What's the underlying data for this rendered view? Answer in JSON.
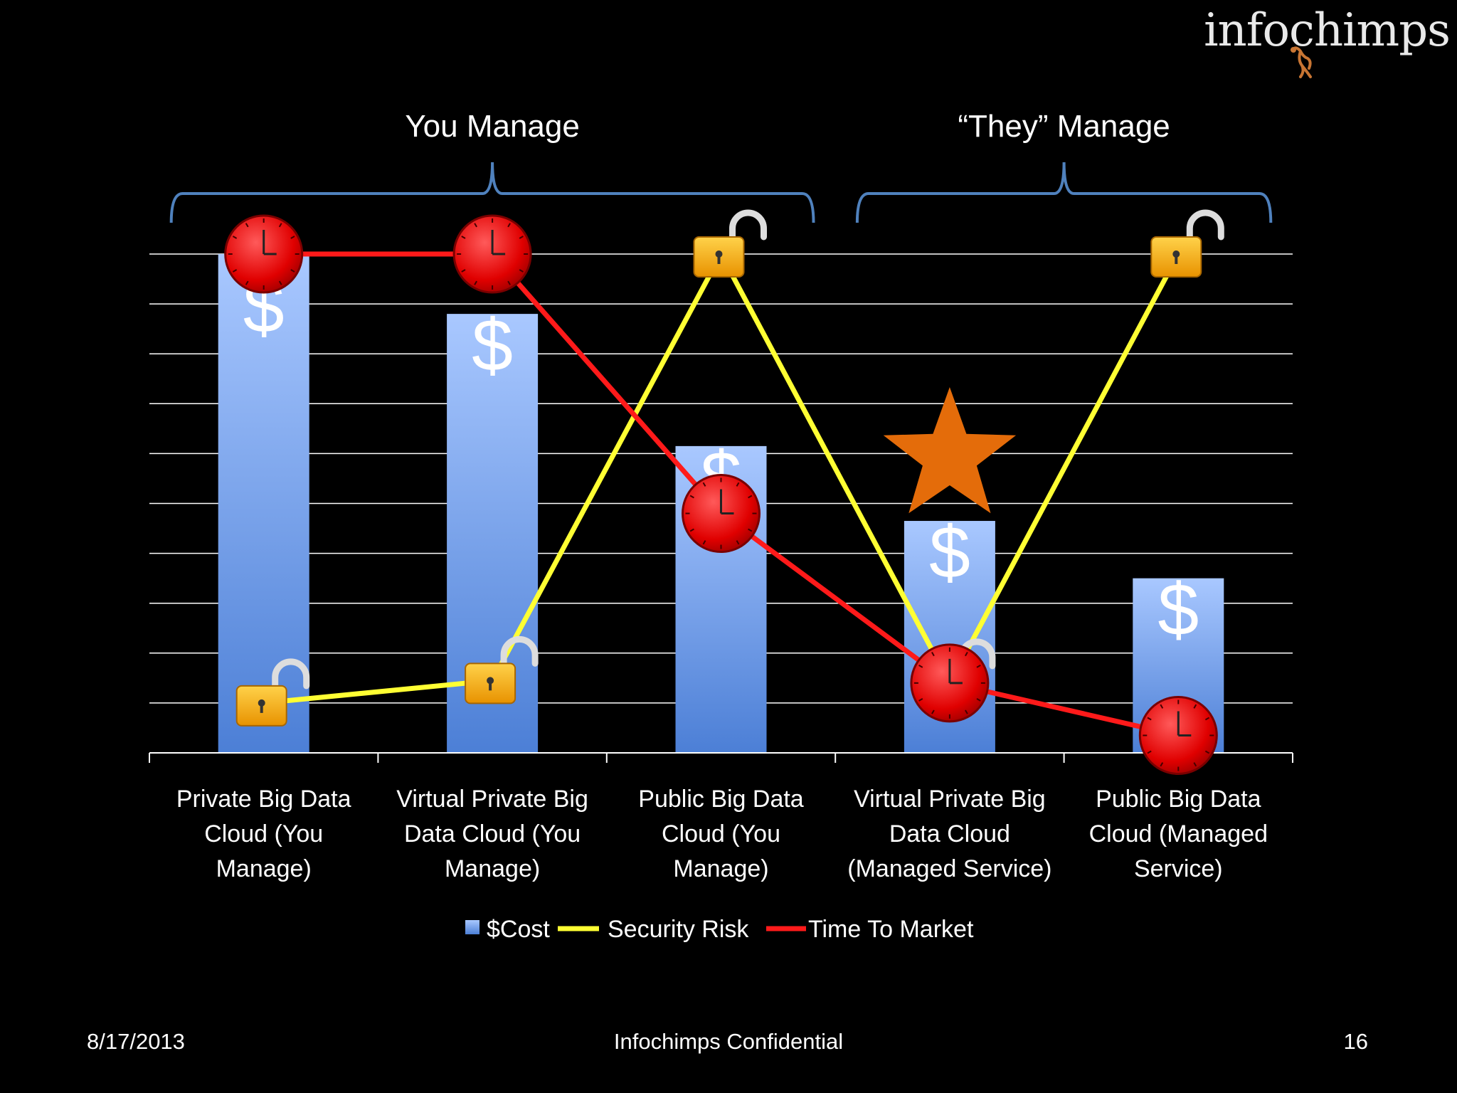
{
  "logo": {
    "text": "infochimps"
  },
  "brackets": [
    {
      "label": "You Manage",
      "from_index": 0,
      "to_index": 2
    },
    {
      "label": "“They” Manage",
      "from_index": 3,
      "to_index": 4
    }
  ],
  "footer": {
    "date": "8/17/2013",
    "center": "Infochimps Confidential",
    "page": "16"
  },
  "colors": {
    "background": "#000000",
    "bar_top": "#a9c8ff",
    "bar_bottom": "#4c7fd6",
    "security": "#ffff33",
    "time": "#ff1a1a",
    "bracket": "#4f81bd",
    "star": "#e46c0a",
    "gridline": "#ffffff"
  },
  "chart_data": {
    "type": "bar",
    "categories": [
      [
        "Private Big Data",
        "Cloud (You",
        "Manage)"
      ],
      [
        "Virtual Private Big",
        "Data Cloud (You",
        "Manage)"
      ],
      [
        "Public Big Data",
        "Cloud (You",
        "Manage)"
      ],
      [
        "Virtual Private Big",
        "Data Cloud",
        "(Managed Service)"
      ],
      [
        "Public Big Data",
        "Cloud (Managed",
        "Service)"
      ]
    ],
    "series": [
      {
        "name": "$Cost",
        "kind": "bar",
        "values": [
          10,
          8.8,
          6.15,
          4.65,
          3.5
        ],
        "marker": "$"
      },
      {
        "name": "Security Risk",
        "kind": "line",
        "values": [
          1,
          1.45,
          10,
          1.4,
          10
        ],
        "marker": "lock-icon"
      },
      {
        "name": "Time To Market",
        "kind": "line",
        "values": [
          10,
          10,
          4.8,
          1.4,
          0.35
        ],
        "marker": "clock-icon"
      }
    ],
    "highlight": {
      "category_index": 3,
      "marker": "star-icon"
    },
    "ylim": [
      0,
      10
    ],
    "gridlines": 10,
    "title": "",
    "xlabel": "",
    "ylabel": "",
    "legend": {
      "position": "bottom",
      "entries": [
        {
          "label": "$Cost",
          "kind": "bar"
        },
        {
          "label": "Security Risk",
          "kind": "line",
          "series_index": 1
        },
        {
          "label": "Time To Market",
          "kind": "line",
          "series_index": 2
        }
      ]
    }
  }
}
